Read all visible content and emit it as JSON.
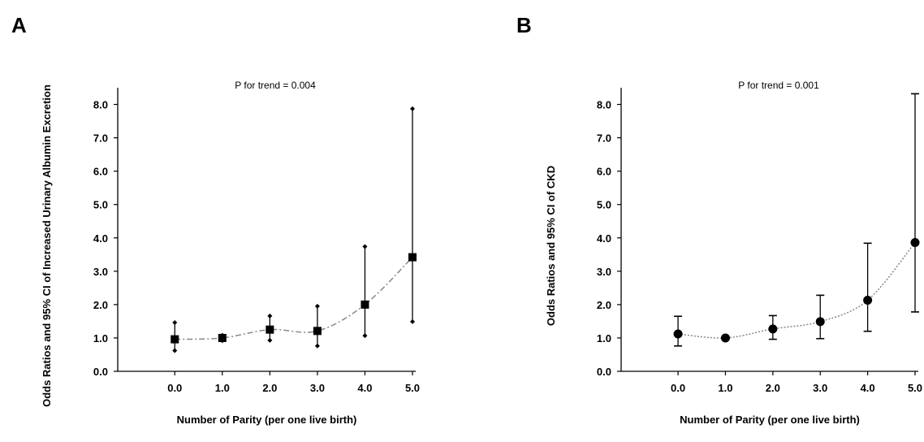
{
  "chart_data": [
    {
      "panel_label": "A",
      "type": "scatter",
      "x": [
        0.0,
        1.0,
        2.0,
        3.0,
        4.0,
        5.0
      ],
      "xtick_labels": [
        "0.0",
        "1.0",
        "2.0",
        "3.0",
        "4.0",
        "5.0"
      ],
      "ytick_labels": [
        "0.0",
        "1.0",
        "2.0",
        "3.0",
        "4.0",
        "5.0",
        "6.0",
        "7.0",
        "8.0"
      ],
      "series": [
        {
          "values": [
            0.96,
            1.0,
            1.25,
            1.21,
            2.0,
            3.42
          ],
          "ci_lower": [
            0.62,
            0.92,
            0.93,
            0.76,
            1.07,
            1.49
          ],
          "ci_upper": [
            1.46,
            1.08,
            1.66,
            1.95,
            3.74,
            7.87
          ],
          "marker": "square",
          "ci_cap": "diamond",
          "line_style": "dash-dot",
          "line_color": "#888888"
        }
      ],
      "annotation": "P for trend = 0.004",
      "xlabel": "Number of Parity (per one live birth)",
      "ylabel": "Odds Ratios and 95% CI of Increased Urinary Albumin Excretion",
      "xlim": [
        -1.2,
        5.0
      ],
      "ylim": [
        0,
        8.5
      ],
      "grid": false
    },
    {
      "panel_label": "B",
      "type": "scatter",
      "x": [
        0.0,
        1.0,
        2.0,
        3.0,
        4.0,
        5.0
      ],
      "xtick_labels": [
        "0.0",
        "1.0",
        "2.0",
        "3.0",
        "4.0",
        "5.0"
      ],
      "ytick_labels": [
        "0.0",
        "1.0",
        "2.0",
        "3.0",
        "4.0",
        "5.0",
        "6.0",
        "7.0",
        "8.0"
      ],
      "series": [
        {
          "values": [
            1.12,
            1.0,
            1.27,
            1.49,
            2.13,
            3.86
          ],
          "ci_lower": [
            0.76,
            1.0,
            0.96,
            0.98,
            1.2,
            1.78
          ],
          "ci_upper": [
            1.65,
            1.0,
            1.67,
            2.28,
            3.84,
            8.32
          ],
          "marker": "circle",
          "ci_cap": "bar",
          "line_style": "dotted",
          "line_color": "#888888"
        }
      ],
      "annotation": "P for trend = 0.001",
      "xlabel": "Number of Parity (per one live birth)",
      "ylabel": "Odds Ratios and 95% CI of CKD",
      "xlim": [
        -1.2,
        5.0
      ],
      "ylim": [
        0,
        8.5
      ],
      "grid": false
    }
  ]
}
